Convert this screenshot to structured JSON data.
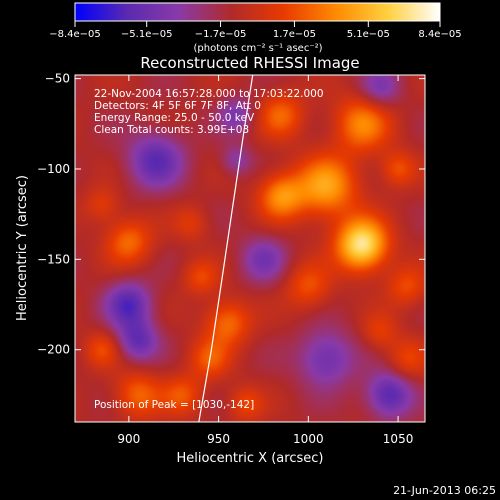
{
  "chart_data": {
    "type": "heatmap",
    "title": "Reconstructed RHESSI Image",
    "xlabel": "Heliocentric X (arcsec)",
    "ylabel": "Heliocentric Y (arcsec)",
    "xlim": [
      870,
      1065
    ],
    "ylim": [
      -240,
      -48
    ],
    "x_ticks": [
      900,
      950,
      1000,
      1050
    ],
    "x_tick_labels": [
      "900",
      "950",
      "1000",
      "1050"
    ],
    "y_ticks": [
      -50,
      -100,
      -150,
      -200
    ],
    "y_tick_labels": [
      "−50",
      "−100",
      "−150",
      "−200"
    ],
    "colorbar": {
      "range": [
        -8.4e-05,
        8.4e-05
      ],
      "tick_values": [
        -8.4e-05,
        -5.1e-05,
        -1.7e-05,
        1.7e-05,
        5.1e-05,
        8.4e-05
      ],
      "tick_labels": [
        "−8.4e−05",
        "−5.1e−05",
        "−1.7e−05",
        "1.7e−05",
        "5.1e−05",
        "8.4e−05"
      ],
      "unit_label": "(photons cm⁻² s⁻¹ asec⁻²)",
      "colors": [
        "#0000ff",
        "#5a2ab0",
        "#8a3aa8",
        "#b02a2a",
        "#e83a00",
        "#ff8a00",
        "#ffd040",
        "#ffffff"
      ]
    },
    "annotations": [
      "22-Nov-2004 16:57:28.000 to 17:03:22.000",
      "Detectors: 4F 5F 6F 7F 8F, Att 0",
      "Energy Range: 25.0 - 50.0 keV",
      "Clean     Total counts: 3.99E+03"
    ],
    "peak_label": "Position of Peak = [1030,-142]",
    "peak": [
      1030,
      -142
    ],
    "limb_line": [
      [
        939,
        -240
      ],
      [
        946,
        -200
      ],
      [
        952,
        -160
      ],
      [
        958,
        -120
      ],
      [
        964,
        -80
      ],
      [
        969,
        -48
      ]
    ],
    "sources": [
      {
        "x": 1030,
        "y": -142,
        "amp": 8.4e-05,
        "s": 10
      },
      {
        "x": 1010,
        "y": -110,
        "amp": 5.5e-05,
        "s": 12
      },
      {
        "x": 985,
        "y": -115,
        "amp": 4.8e-05,
        "s": 9
      },
      {
        "x": 1030,
        "y": -75,
        "amp": 4.5e-05,
        "s": 11
      },
      {
        "x": 985,
        "y": -70,
        "amp": 3.5e-05,
        "s": 9
      },
      {
        "x": 1050,
        "y": -100,
        "amp": 3e-05,
        "s": 7
      },
      {
        "x": 1000,
        "y": -165,
        "amp": 3e-05,
        "s": 9
      },
      {
        "x": 1055,
        "y": -165,
        "amp": 2.8e-05,
        "s": 8
      },
      {
        "x": 1055,
        "y": -205,
        "amp": 2.5e-05,
        "s": 8
      },
      {
        "x": 1040,
        "y": -190,
        "amp": 2.2e-05,
        "s": 7
      },
      {
        "x": 955,
        "y": -185,
        "amp": 4e-05,
        "s": 9
      },
      {
        "x": 945,
        "y": -205,
        "amp": 3e-05,
        "s": 8
      },
      {
        "x": 930,
        "y": -225,
        "amp": 3e-05,
        "s": 8
      },
      {
        "x": 965,
        "y": -230,
        "amp": 2.6e-05,
        "s": 7
      },
      {
        "x": 940,
        "y": -160,
        "amp": 2.6e-05,
        "s": 7
      },
      {
        "x": 900,
        "y": -140,
        "amp": 3.8e-05,
        "s": 9
      },
      {
        "x": 905,
        "y": -225,
        "amp": 3.6e-05,
        "s": 9
      },
      {
        "x": 885,
        "y": -200,
        "amp": 2.6e-05,
        "s": 7
      },
      {
        "x": 885,
        "y": -120,
        "amp": 2.2e-05,
        "s": 7
      },
      {
        "x": 935,
        "y": -130,
        "amp": 2e-05,
        "s": 7
      },
      {
        "x": 915,
        "y": -95,
        "amp": -4.5e-05,
        "s": 11
      },
      {
        "x": 900,
        "y": -175,
        "amp": -4.8e-05,
        "s": 9
      },
      {
        "x": 905,
        "y": -195,
        "amp": -4.2e-05,
        "s": 8
      },
      {
        "x": 1045,
        "y": -225,
        "amp": -5e-05,
        "s": 9
      },
      {
        "x": 1010,
        "y": -205,
        "amp": -4e-05,
        "s": 11
      },
      {
        "x": 975,
        "y": -150,
        "amp": -3.2e-05,
        "s": 9
      },
      {
        "x": 1040,
        "y": -55,
        "amp": -3e-05,
        "s": 8
      },
      {
        "x": 960,
        "y": -70,
        "amp": -3e-05,
        "s": 7
      },
      {
        "x": 960,
        "y": -95,
        "amp": -2.5e-05,
        "s": 6
      }
    ]
  },
  "footer": {
    "timestamp": "21-Jun-2013 06:25"
  }
}
